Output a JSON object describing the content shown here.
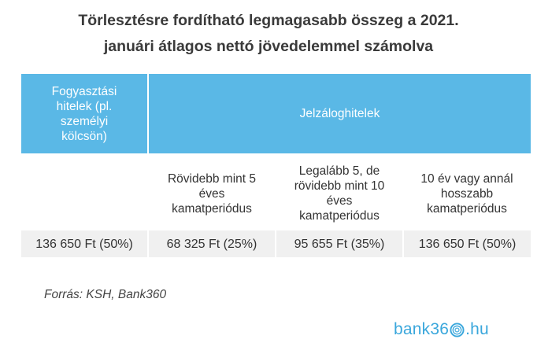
{
  "title": {
    "line1": "Törlesztésre fordítható legmagasabb összeg a 2021.",
    "line2": "januári átlagos nettó jövedelemmel számolva"
  },
  "table": {
    "header": {
      "consumer_loans": [
        "Fogyasztási",
        "hitelek (pl.",
        "személyi",
        "kölcsön)"
      ],
      "mortgage_loans": "Jelzáloghitelek"
    },
    "subheaders": [
      [],
      [
        "Rövidebb mint 5",
        "éves",
        "kamatperiódus"
      ],
      [
        "Legalább 5, de",
        "rövidebb mint 10",
        "éves",
        "kamatperiódus"
      ],
      [
        "10 év vagy annál",
        "hosszabb",
        "kamatperiódus"
      ]
    ],
    "values": [
      "136 650 Ft (50%)",
      "68 325 Ft (25%)",
      "95 655 Ft (35%)",
      "136 650 Ft (50%)"
    ]
  },
  "source": "Forrás: KSH, Bank360",
  "logo": {
    "prefix": "bank36",
    "ring_icon": "ring-zero-icon",
    "suffix": ".hu",
    "color": "#3aa7dc"
  },
  "colors": {
    "header_bg": "#5ab8e6",
    "value_row_bg": "#f0f0f0"
  }
}
